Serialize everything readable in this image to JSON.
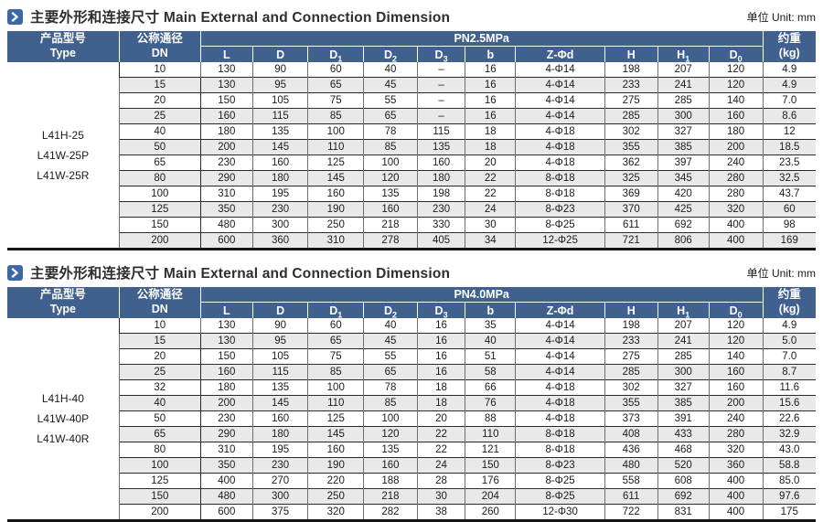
{
  "page": {
    "accent_blue": "#40608e",
    "icon_blue": "#3f66a5",
    "stripe_gray": "#e9e9e9"
  },
  "tables": [
    {
      "title_zh": "主要外形和连接尺寸",
      "title_en": "Main External and Connection Dimension",
      "unit": "单位 Unit: mm",
      "pressure": "PN2.5MPa",
      "type_header_zh": "产品型号",
      "type_header_en": "Type",
      "dn_header_zh": "公称通径",
      "dn_header_en": "DN",
      "weight_header_zh": "约重",
      "weight_header_en": "(kg)",
      "columns": [
        {
          "base": "L",
          "sub": ""
        },
        {
          "base": "D",
          "sub": ""
        },
        {
          "base": "D",
          "sub": "1"
        },
        {
          "base": "D",
          "sub": "2"
        },
        {
          "base": "D",
          "sub": "3"
        },
        {
          "base": "b",
          "sub": ""
        },
        {
          "base": "Z-Φd",
          "sub": ""
        },
        {
          "base": "H",
          "sub": ""
        },
        {
          "base": "H",
          "sub": "1"
        },
        {
          "base": "D",
          "sub": "0"
        }
      ],
      "types": [
        "L41H-25",
        "L41W-25P",
        "L41W-25R"
      ],
      "rows": [
        [
          "10",
          "130",
          "90",
          "60",
          "40",
          "–",
          "16",
          "4-Φ14",
          "198",
          "207",
          "120",
          "4.9"
        ],
        [
          "15",
          "130",
          "95",
          "65",
          "45",
          "–",
          "16",
          "4-Φ14",
          "233",
          "241",
          "120",
          "4.9"
        ],
        [
          "20",
          "150",
          "105",
          "75",
          "55",
          "–",
          "16",
          "4-Φ14",
          "275",
          "285",
          "140",
          "7.0"
        ],
        [
          "25",
          "160",
          "115",
          "85",
          "65",
          "–",
          "16",
          "4-Φ14",
          "285",
          "300",
          "160",
          "8.6"
        ],
        [
          "40",
          "180",
          "135",
          "100",
          "78",
          "115",
          "18",
          "4-Φ18",
          "302",
          "327",
          "180",
          "12"
        ],
        [
          "50",
          "200",
          "145",
          "110",
          "85",
          "135",
          "18",
          "4-Φ18",
          "355",
          "385",
          "200",
          "18.5"
        ],
        [
          "65",
          "230",
          "160",
          "125",
          "100",
          "160",
          "20",
          "4-Φ18",
          "362",
          "397",
          "240",
          "23.5"
        ],
        [
          "80",
          "290",
          "180",
          "145",
          "120",
          "180",
          "22",
          "8-Φ18",
          "325",
          "345",
          "280",
          "32.5"
        ],
        [
          "100",
          "310",
          "195",
          "160",
          "135",
          "198",
          "22",
          "8-Φ18",
          "369",
          "420",
          "280",
          "43.7"
        ],
        [
          "125",
          "350",
          "230",
          "190",
          "160",
          "230",
          "24",
          "8-Φ23",
          "370",
          "425",
          "320",
          "60"
        ],
        [
          "150",
          "480",
          "300",
          "250",
          "218",
          "330",
          "30",
          "8-Φ25",
          "611",
          "692",
          "400",
          "98"
        ],
        [
          "200",
          "600",
          "360",
          "310",
          "278",
          "405",
          "34",
          "12-Φ25",
          "721",
          "806",
          "400",
          "169"
        ]
      ]
    },
    {
      "title_zh": "主要外形和连接尺寸",
      "title_en": "Main External and Connection Dimension",
      "unit": "单位 Unit: mm",
      "pressure": "PN4.0MPa",
      "type_header_zh": "产品型号",
      "type_header_en": "Type",
      "dn_header_zh": "公称通径",
      "dn_header_en": "DN",
      "weight_header_zh": "约重",
      "weight_header_en": "(kg)",
      "columns": [
        {
          "base": "L",
          "sub": ""
        },
        {
          "base": "D",
          "sub": ""
        },
        {
          "base": "D",
          "sub": "1"
        },
        {
          "base": "D",
          "sub": "2"
        },
        {
          "base": "D",
          "sub": "3"
        },
        {
          "base": "b",
          "sub": ""
        },
        {
          "base": "Z-Φd",
          "sub": ""
        },
        {
          "base": "H",
          "sub": ""
        },
        {
          "base": "H",
          "sub": "1"
        },
        {
          "base": "D",
          "sub": "0"
        }
      ],
      "types": [
        "L41H-40",
        "L41W-40P",
        "L41W-40R"
      ],
      "rows": [
        [
          "10",
          "130",
          "90",
          "60",
          "40",
          "16",
          "35",
          "4-Φ14",
          "198",
          "207",
          "120",
          "4.9"
        ],
        [
          "15",
          "130",
          "95",
          "65",
          "45",
          "16",
          "40",
          "4-Φ14",
          "233",
          "241",
          "120",
          "5.0"
        ],
        [
          "20",
          "150",
          "105",
          "75",
          "55",
          "16",
          "51",
          "4-Φ14",
          "275",
          "285",
          "140",
          "7.0"
        ],
        [
          "25",
          "160",
          "115",
          "85",
          "65",
          "16",
          "58",
          "4-Φ14",
          "285",
          "300",
          "160",
          "8.7"
        ],
        [
          "32",
          "180",
          "135",
          "100",
          "78",
          "18",
          "66",
          "4-Φ18",
          "302",
          "327",
          "160",
          "11.6"
        ],
        [
          "40",
          "200",
          "145",
          "110",
          "85",
          "18",
          "76",
          "4-Φ18",
          "355",
          "385",
          "200",
          "15.6"
        ],
        [
          "50",
          "230",
          "160",
          "125",
          "100",
          "20",
          "88",
          "4-Φ18",
          "373",
          "391",
          "240",
          "22.6"
        ],
        [
          "65",
          "290",
          "180",
          "145",
          "120",
          "22",
          "110",
          "8-Φ18",
          "408",
          "433",
          "280",
          "32.9"
        ],
        [
          "80",
          "310",
          "195",
          "160",
          "135",
          "22",
          "121",
          "8-Φ18",
          "436",
          "468",
          "320",
          "43.0"
        ],
        [
          "100",
          "350",
          "230",
          "190",
          "160",
          "24",
          "150",
          "8-Φ23",
          "480",
          "520",
          "360",
          "58.8"
        ],
        [
          "125",
          "400",
          "270",
          "220",
          "188",
          "28",
          "176",
          "8-Φ25",
          "558",
          "608",
          "400",
          "85.0"
        ],
        [
          "150",
          "480",
          "300",
          "250",
          "218",
          "30",
          "204",
          "8-Φ25",
          "611",
          "692",
          "400",
          "97.6"
        ],
        [
          "200",
          "600",
          "375",
          "320",
          "282",
          "38",
          "260",
          "12-Φ30",
          "722",
          "831",
          "400",
          "175"
        ]
      ]
    }
  ]
}
